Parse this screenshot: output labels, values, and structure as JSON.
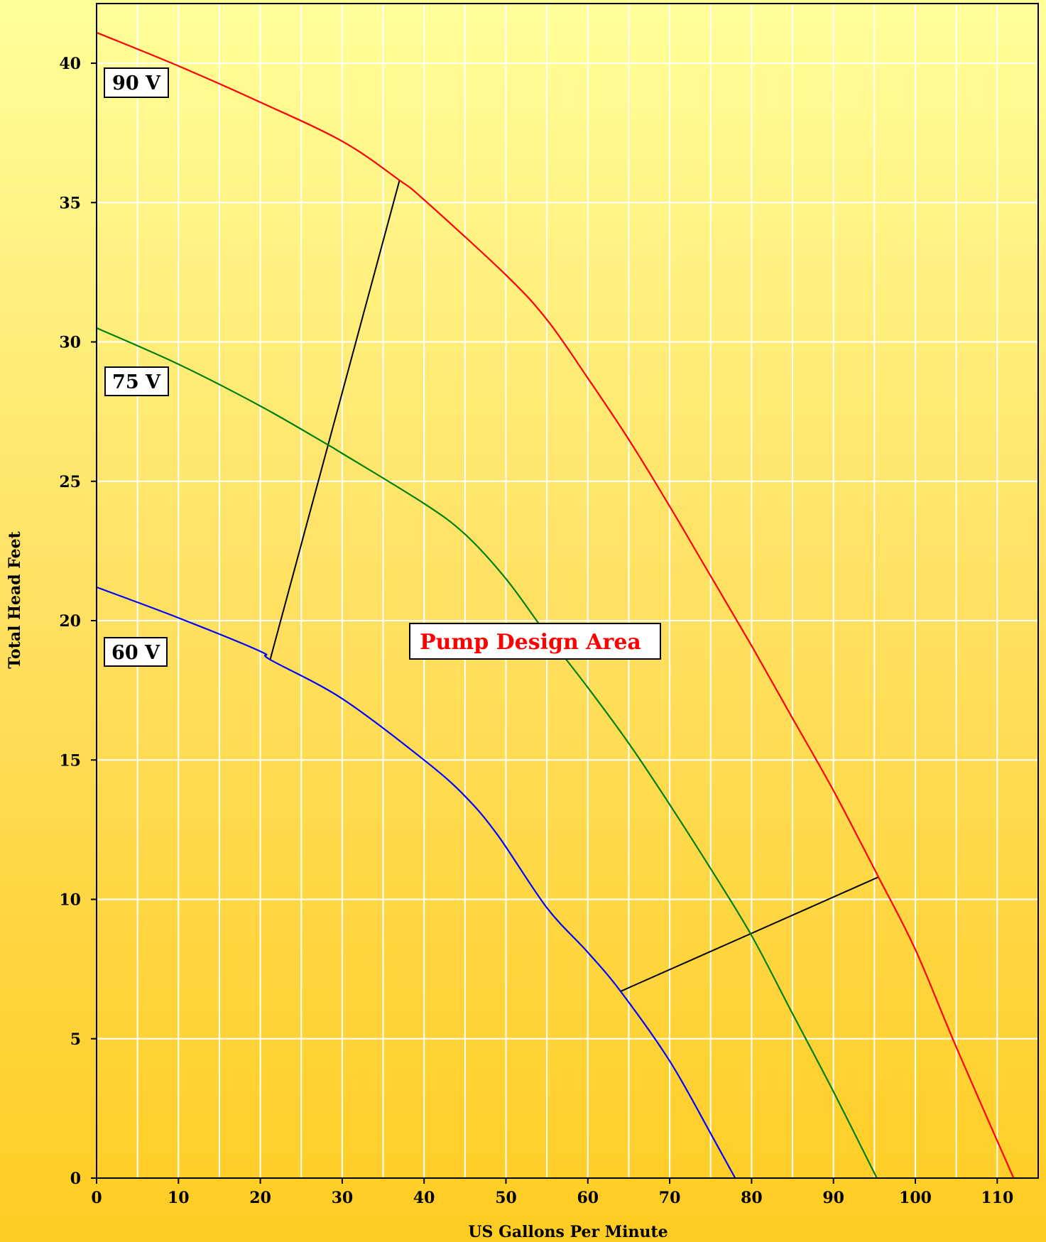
{
  "chart_data": {
    "type": "line",
    "xlabel": "US Gallons Per Minute",
    "ylabel": "Total Head Feet",
    "xlim": [
      0,
      115
    ],
    "ylim": [
      0,
      42
    ],
    "x_ticks": [
      0,
      10,
      20,
      30,
      40,
      50,
      60,
      70,
      80,
      90,
      100,
      110
    ],
    "y_ticks": [
      0,
      5,
      10,
      15,
      20,
      25,
      30,
      35,
      40
    ],
    "x_grid_step": 5,
    "grid": true,
    "annotation": "Pump Design Area",
    "series": [
      {
        "name": "90 V",
        "color": "#ff0000",
        "x": [
          0,
          10,
          20,
          30,
          37,
          40,
          50,
          55,
          60,
          65,
          70,
          75,
          80,
          85,
          90,
          95.5,
          100,
          105,
          112
        ],
        "y": [
          41.1,
          39.9,
          38.6,
          37.2,
          35.8,
          35.1,
          32.4,
          30.8,
          28.7,
          26.5,
          24.1,
          21.6,
          19.1,
          16.5,
          13.9,
          10.8,
          8.2,
          4.7,
          0
        ]
      },
      {
        "name": "75 V",
        "color": "#008000",
        "x": [
          0,
          10,
          20,
          28.3,
          30,
          40,
          45,
          50,
          55,
          60,
          65,
          70,
          75,
          80,
          85,
          90,
          95.3
        ],
        "y": [
          30.5,
          29.2,
          27.7,
          26.3,
          26.0,
          24.2,
          23.1,
          21.5,
          19.5,
          17.6,
          15.6,
          13.4,
          11.1,
          8.7,
          5.9,
          3.1,
          0
        ]
      },
      {
        "name": "60 V",
        "color": "#0000ff",
        "x": [
          0,
          10,
          20,
          21.2,
          30,
          40,
          45,
          49,
          55,
          60,
          64,
          70,
          75,
          78
        ],
        "y": [
          21.2,
          20.1,
          18.9,
          18.6,
          17.2,
          15.0,
          13.7,
          12.3,
          9.7,
          8.1,
          6.7,
          4.2,
          1.6,
          0
        ]
      }
    ],
    "design_area_lines": [
      {
        "x": [
          21.2,
          37
        ],
        "y": [
          18.6,
          35.8
        ]
      },
      {
        "x": [
          64,
          95.5
        ],
        "y": [
          6.7,
          10.8
        ]
      }
    ]
  }
}
